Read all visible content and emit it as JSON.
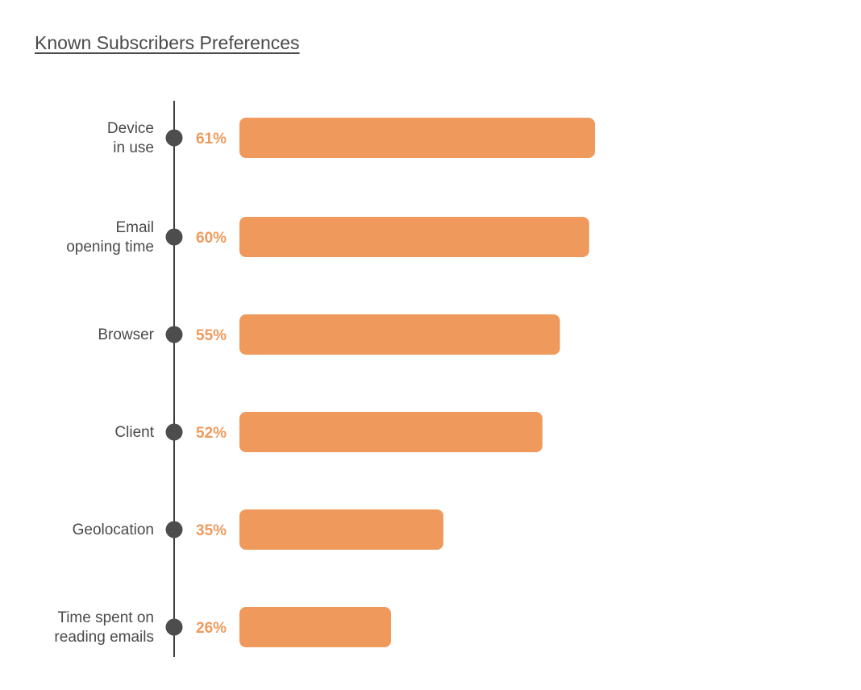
{
  "chart_data": {
    "type": "bar",
    "orientation": "horizontal",
    "title": "Known Subscribers Preferences",
    "xlabel": "",
    "ylabel": "",
    "categories": [
      [
        "Device",
        "in use"
      ],
      [
        "Email",
        "opening time"
      ],
      [
        "Browser"
      ],
      [
        "Client"
      ],
      [
        "Geolocation"
      ],
      [
        "Time spent on",
        "reading emails"
      ]
    ],
    "values": [
      61,
      60,
      55,
      52,
      35,
      26
    ],
    "value_labels": [
      "61%",
      "60%",
      "55%",
      "52%",
      "35%",
      "26%"
    ],
    "unit": "%",
    "xlim": [
      0,
      100
    ],
    "grid": false,
    "legend": "none",
    "colors": {
      "bar": "#ef9a5c",
      "value_text": "#ef9a5c",
      "axis_line": "#3f3f3f",
      "marker": "#4d4d4d",
      "category_text": "#4a4a4a",
      "title_text": "#4a4a4a"
    }
  }
}
